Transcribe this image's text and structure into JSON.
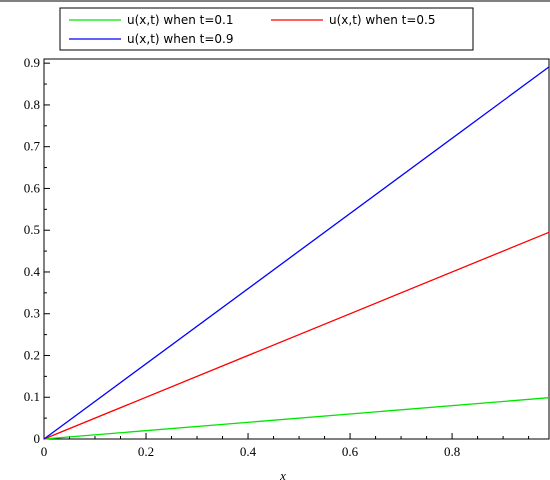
{
  "chart_data": {
    "type": "line",
    "title": "",
    "xlabel": "x",
    "ylabel": "",
    "xlim": [
      0,
      0.99
    ],
    "ylim": [
      0,
      0.91
    ],
    "grid": false,
    "legend_position": "top",
    "x_ticks": [
      "0",
      "0.2",
      "0.4",
      "0.6",
      "0.8"
    ],
    "x_tick_values": [
      0,
      0.2,
      0.4,
      0.6,
      0.8
    ],
    "y_ticks": [
      "0",
      "0.1",
      "0.2",
      "0.3",
      "0.4",
      "0.5",
      "0.6",
      "0.7",
      "0.8",
      "0.9"
    ],
    "y_tick_values": [
      0,
      0.1,
      0.2,
      0.3,
      0.4,
      0.5,
      0.6,
      0.7,
      0.8,
      0.9
    ],
    "series": [
      {
        "name": "u(x,t) when t=0.1",
        "color": "#00e600",
        "x": [
          0,
          0.99
        ],
        "y": [
          0,
          0.099
        ]
      },
      {
        "name": "u(x,t) when t=0.5",
        "color": "#ff0000",
        "x": [
          0,
          0.99
        ],
        "y": [
          0,
          0.495
        ]
      },
      {
        "name": "u(x,t) when t=0.9",
        "color": "#0000ff",
        "x": [
          0,
          0.99
        ],
        "y": [
          0,
          0.891
        ]
      }
    ]
  }
}
